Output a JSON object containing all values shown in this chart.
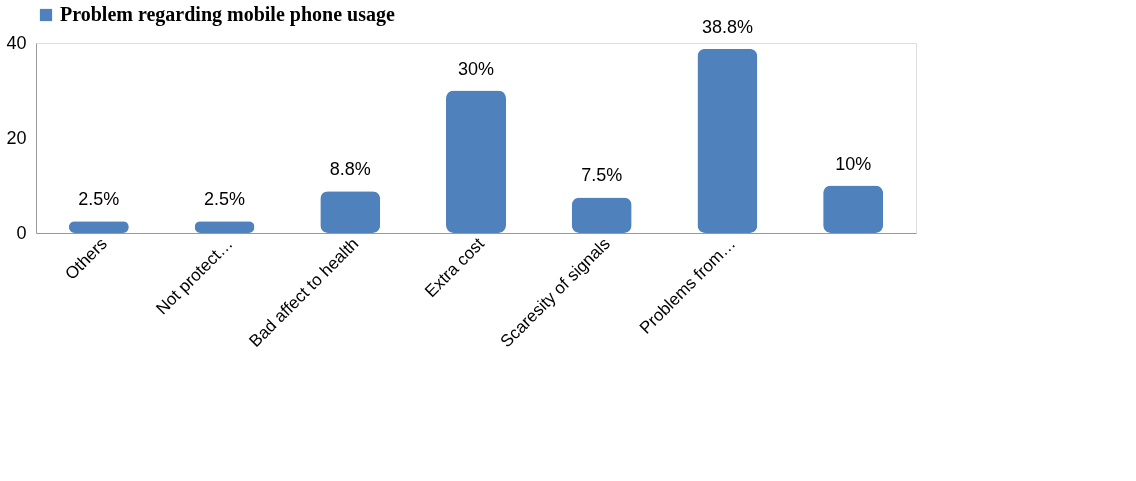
{
  "chart_data": {
    "type": "bar",
    "categories": [
      "Others",
      "Not protect…",
      "Bad affect to health",
      "Extra cost",
      "Scaresity of signals",
      "Problems from…",
      null
    ],
    "series": [
      {
        "name": "Problem regarding mobile phone usage",
        "color": "#4f81bd",
        "values": [
          2.5,
          2.5,
          8.8,
          30,
          7.5,
          38.8,
          10
        ],
        "value_labels": [
          "2.5%",
          "2.5%",
          "8.8%",
          "30%",
          "7.5%",
          "38.8%",
          "10%"
        ]
      }
    ],
    "ylim": [
      0,
      40
    ],
    "yticks": [
      0,
      20,
      40
    ],
    "grid": false,
    "legend": "top"
  }
}
